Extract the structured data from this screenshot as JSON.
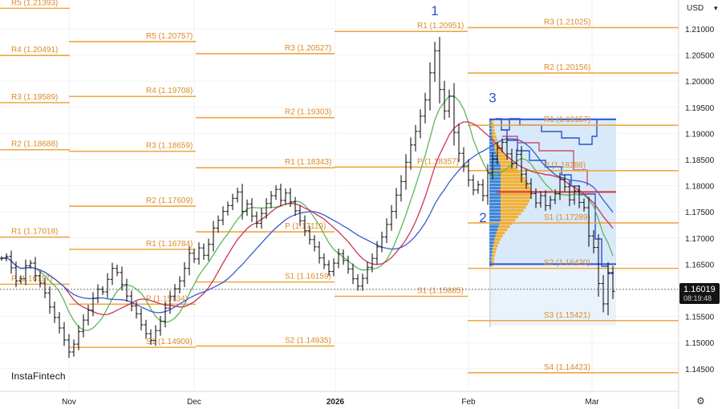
{
  "header": {
    "currency": "USD"
  },
  "brand": "InstaFintech",
  "current_price": {
    "value": "1.16019",
    "time": "08:19:48"
  },
  "icons": {
    "currency_caret": "chevron-down-icon",
    "settings": "gear-icon"
  },
  "colors": {
    "pivot": "#f0a640",
    "profile": "#2f51c8",
    "bars": "#161616",
    "ma_green": "#5fb55a",
    "ma_red": "#c8365a",
    "ma_blue": "#3a5bd0",
    "poc": "#e03030"
  },
  "chart_data": {
    "type": "ohlc",
    "symbol_currency": "USD",
    "y_axis": {
      "side": "right",
      "min": 1.14,
      "max": 1.215,
      "ticks": [
        "1.21000",
        "1.20500",
        "1.20000",
        "1.19500",
        "1.19000",
        "1.18500",
        "1.18000",
        "1.17500",
        "1.17000",
        "1.16500",
        "1.16000",
        "1.15500",
        "1.15000",
        "1.14500"
      ]
    },
    "x_axis": {
      "ticks": [
        "Nov",
        "Dec",
        "2026",
        "Feb",
        "Mar"
      ]
    },
    "last_price": 1.16019,
    "pivot_levels": [
      {
        "period": 0,
        "label": "R5 (1.21393)",
        "price": 1.21393
      },
      {
        "period": 0,
        "label": "R4 (1.20491)",
        "price": 1.20491
      },
      {
        "period": 0,
        "label": "R3 (1.19589)",
        "price": 1.19589
      },
      {
        "period": 0,
        "label": "R2 (1.18688)",
        "price": 1.18688
      },
      {
        "period": 0,
        "label": "R1 (1.17018)",
        "price": 1.17018
      },
      {
        "period": 0,
        "label": "P (1.16117)",
        "price": 1.16117
      },
      {
        "period": 1,
        "label": "R5 (1.20757)",
        "price": 1.20757
      },
      {
        "period": 1,
        "label": "R4 (1.19708)",
        "price": 1.19708
      },
      {
        "period": 1,
        "label": "R3 (1.18659)",
        "price": 1.18659
      },
      {
        "period": 1,
        "label": "R2 (1.17609)",
        "price": 1.17609
      },
      {
        "period": 1,
        "label": "R1 (1.16784)",
        "price": 1.16784
      },
      {
        "period": 1,
        "label": "P (1.15734)",
        "price": 1.15734
      },
      {
        "period": 1,
        "label": "S1 (1.14909)",
        "price": 1.14909
      },
      {
        "period": 2,
        "label": "R3 (1.20527)",
        "price": 1.20527
      },
      {
        "period": 2,
        "label": "R2 (1.19303)",
        "price": 1.19303
      },
      {
        "period": 2,
        "label": "R1 (1.18343)",
        "price": 1.18343
      },
      {
        "period": 2,
        "label": "P (1.17119)",
        "price": 1.17119
      },
      {
        "period": 2,
        "label": "S1 (1.16159)",
        "price": 1.16159
      },
      {
        "period": 2,
        "label": "S2 (1.14935)",
        "price": 1.14935
      },
      {
        "period": 3,
        "label": "R1 (1.20951)",
        "price": 1.20951
      },
      {
        "period": 3,
        "label": "P (1.18357)",
        "price": 1.18357
      },
      {
        "period": 3,
        "label": "S1 (1.15885)",
        "price": 1.15885
      },
      {
        "period": 4,
        "label": "R3 (1.21025)",
        "price": 1.21025
      },
      {
        "period": 4,
        "label": "R2 (1.20156)",
        "price": 1.20156
      },
      {
        "period": 4,
        "label": "R1 (1.19157)",
        "price": 1.19157
      },
      {
        "period": 4,
        "label": "P (1.18288)",
        "price": 1.18288
      },
      {
        "period": 4,
        "label": "S1 (1.17289)",
        "price": 1.17289
      },
      {
        "period": 4,
        "label": "S2 (1.16420)",
        "price": 1.1642
      },
      {
        "period": 4,
        "label": "S3 (1.15421)",
        "price": 1.15421
      },
      {
        "period": 4,
        "label": "S4 (1.14423)",
        "price": 1.14423
      }
    ],
    "wave_labels": [
      {
        "label": "1",
        "date_index": 90,
        "price": 1.2126
      },
      {
        "label": "2",
        "date_index": 100,
        "price": 1.173
      },
      {
        "label": "3",
        "date_index": 102,
        "price": 1.196
      }
    ],
    "volume_profile": {
      "top": 1.1927,
      "bottom": 1.1533,
      "poc": 1.1788,
      "value_area_low": 1.165
    },
    "closes": [
      1.1661,
      1.1665,
      1.1643,
      1.1618,
      1.1622,
      1.1647,
      1.1652,
      1.1628,
      1.1614,
      1.1595,
      1.1568,
      1.1548,
      1.1528,
      1.1505,
      1.1482,
      1.1497,
      1.1521,
      1.1543,
      1.1562,
      1.1585,
      1.1602,
      1.1597,
      1.1621,
      1.1642,
      1.1634,
      1.1611,
      1.1589,
      1.157,
      1.1555,
      1.1534,
      1.1517,
      1.1504,
      1.1523,
      1.1541,
      1.1566,
      1.1588,
      1.1603,
      1.1618,
      1.1642,
      1.1671,
      1.166,
      1.1681,
      1.1667,
      1.1688,
      1.1719,
      1.1734,
      1.1751,
      1.1762,
      1.1776,
      1.1788,
      1.1751,
      1.1765,
      1.1742,
      1.1728,
      1.1747,
      1.1766,
      1.1781,
      1.1793,
      1.1772,
      1.1786,
      1.1769,
      1.1752,
      1.1733,
      1.1714,
      1.1697,
      1.1683,
      1.1662,
      1.1649,
      1.1636,
      1.1652,
      1.167,
      1.1657,
      1.1641,
      1.1622,
      1.1608,
      1.1623,
      1.1644,
      1.1661,
      1.1683,
      1.1702,
      1.1726,
      1.1751,
      1.1782,
      1.1808,
      1.1845,
      1.1878,
      1.1904,
      1.1933,
      1.1964,
      1.2016,
      1.2058,
      1.1984,
      1.1943,
      1.1971,
      1.1902,
      1.1862,
      1.1838,
      1.1811,
      1.1792,
      1.1802,
      1.1781,
      1.1824,
      1.1851,
      1.1872,
      1.1883,
      1.1861,
      1.1843,
      1.186,
      1.1822,
      1.1804,
      1.1785,
      1.1767,
      1.1781,
      1.1762,
      1.1773,
      1.1785,
      1.1812,
      1.1798,
      1.1773,
      1.179,
      1.1768,
      1.1758,
      1.1704,
      1.1682,
      1.1613,
      1.1574,
      1.1632,
      1.1598
    ]
  }
}
